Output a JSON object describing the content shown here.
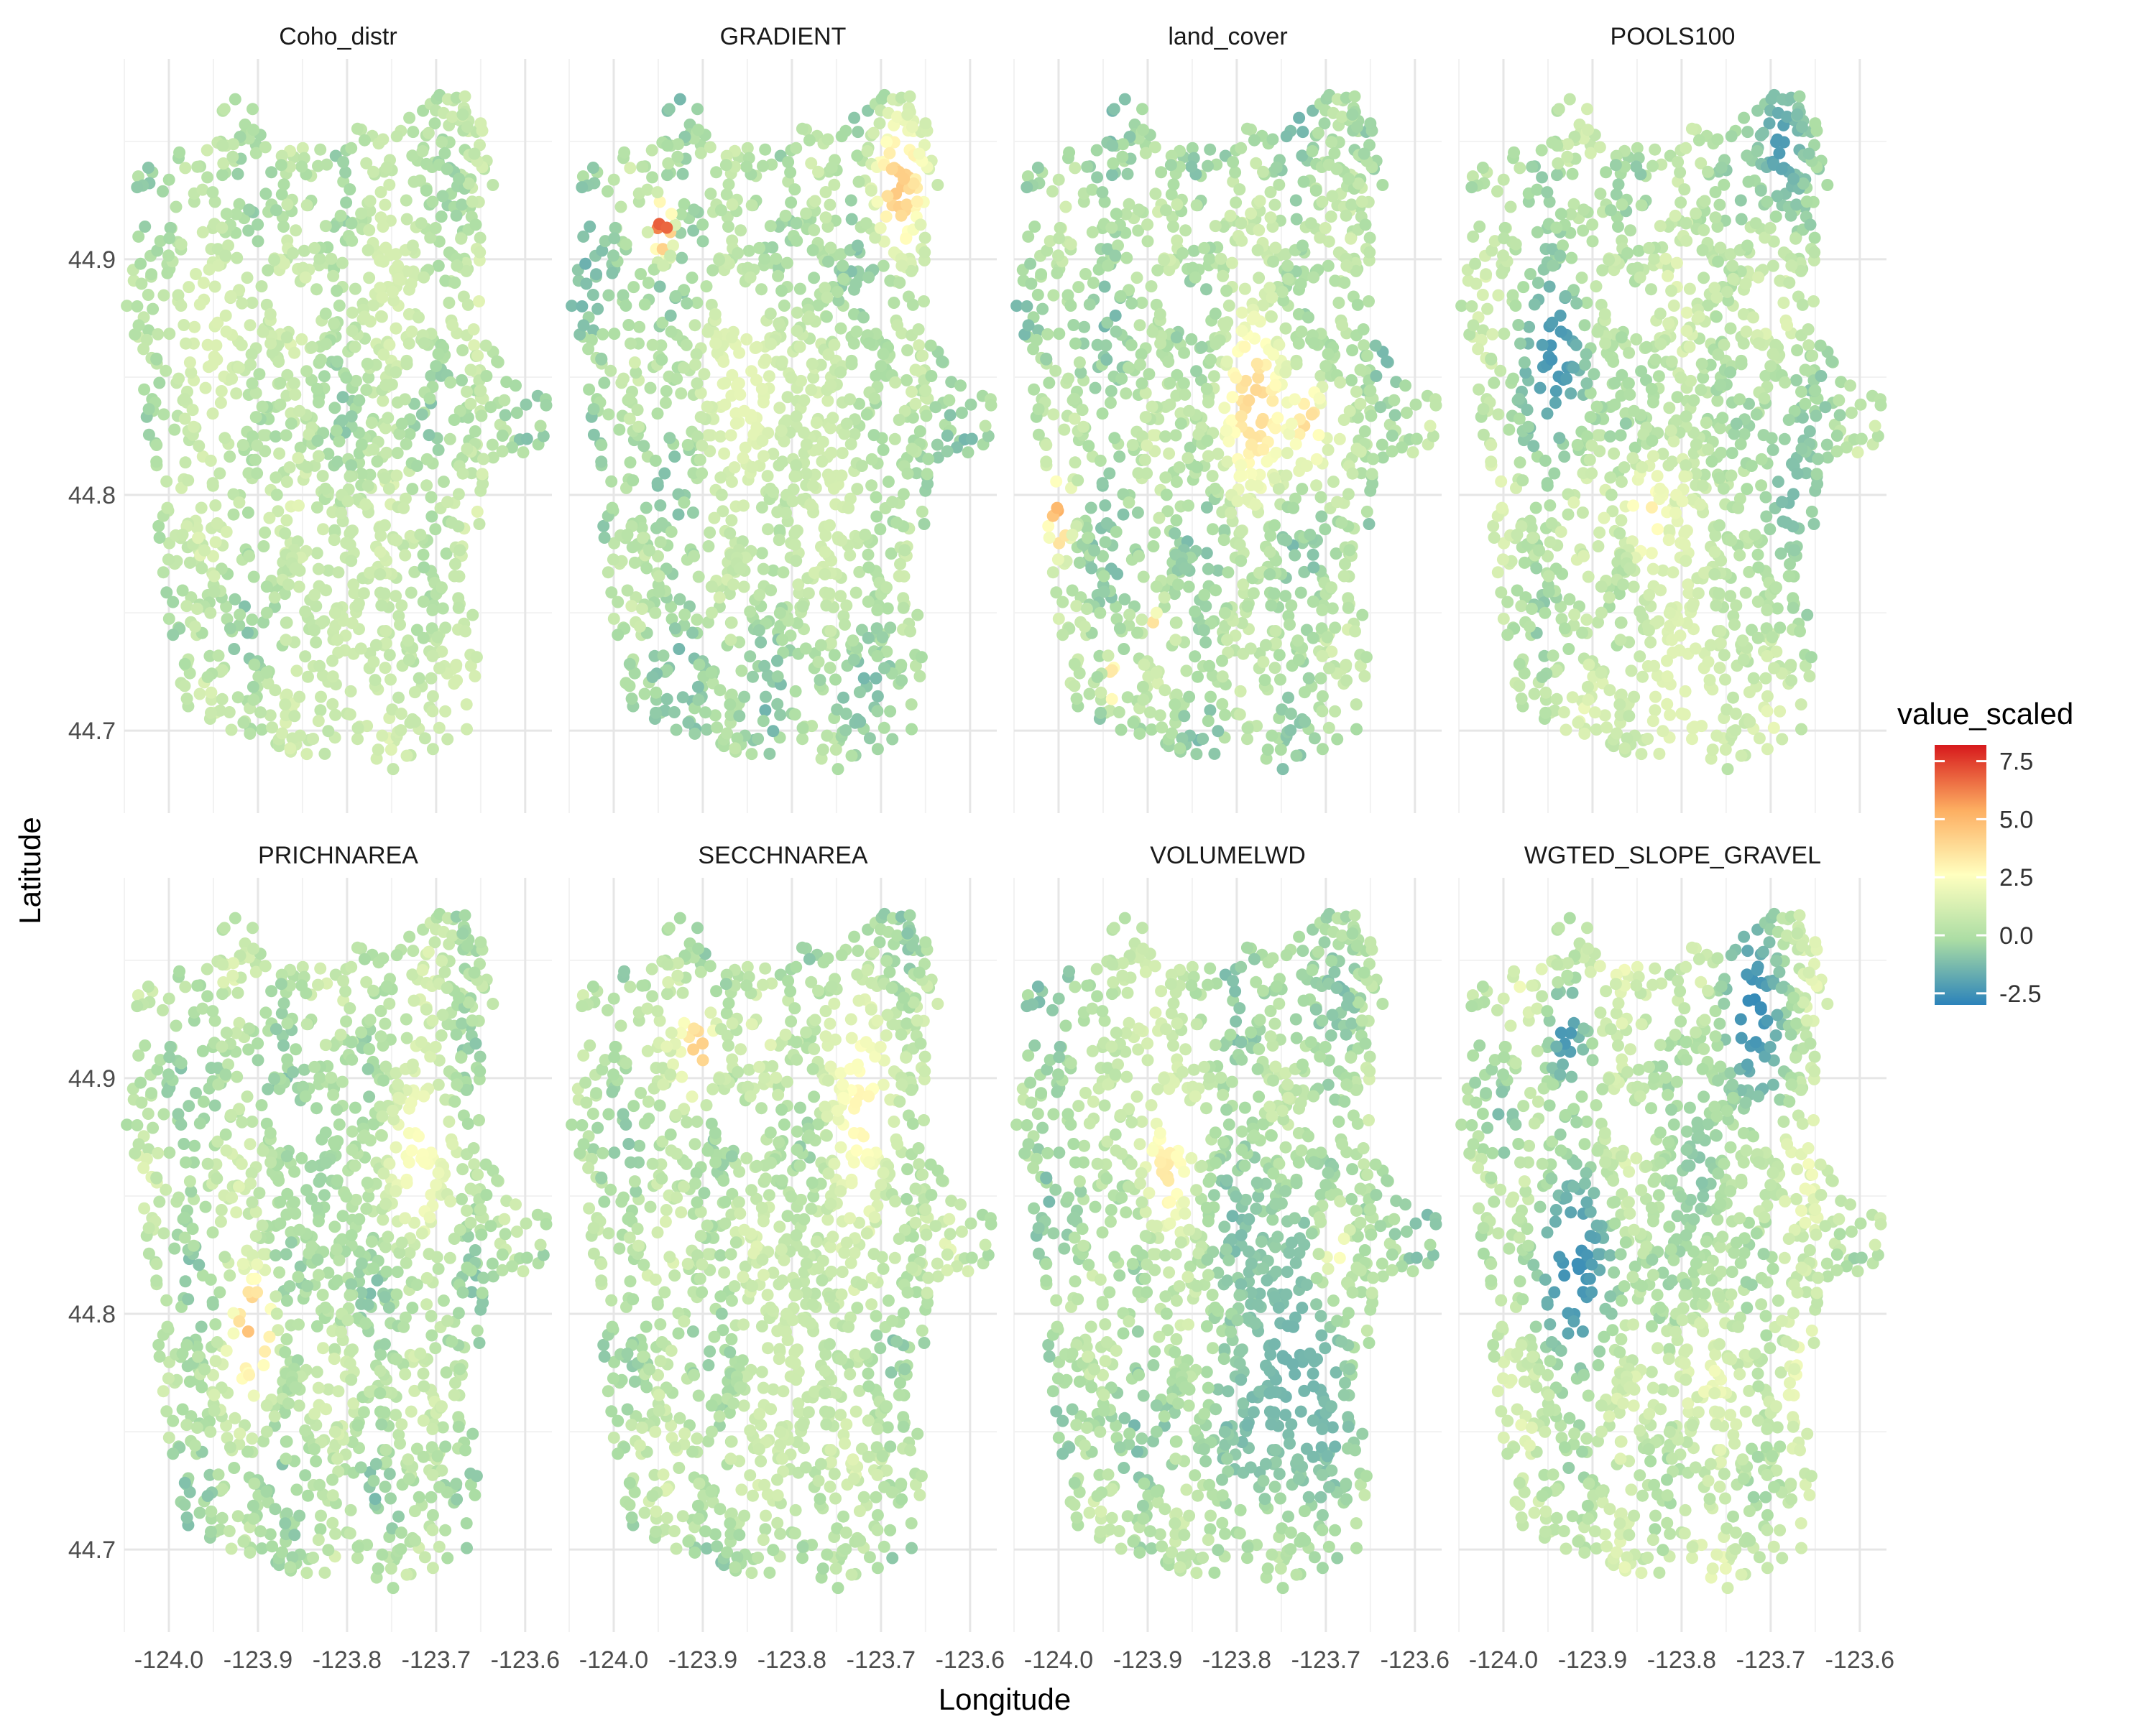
{
  "chart_data": {
    "type": "scatter",
    "layout": "faceted 2x4",
    "xlabel": "Longitude",
    "ylabel": "Latitude",
    "xlim": [
      -124.05,
      -123.57
    ],
    "ylim": [
      44.665,
      44.985
    ],
    "x_ticks": [
      -124.0,
      -123.9,
      -123.8,
      -123.7,
      -123.6
    ],
    "x_tick_labels": [
      "-124.0",
      "-123.9",
      "-123.8",
      "-123.7",
      "-123.6"
    ],
    "y_ticks": [
      44.7,
      44.8,
      44.9
    ],
    "y_tick_labels": [
      "44.7",
      "44.8",
      "44.9"
    ],
    "grid": true,
    "facets": [
      {
        "title": "Coho_distr",
        "base": 0.3,
        "hotspots": [
          {
            "x": -123.95,
            "y": 44.86,
            "v": 1.4,
            "r": 0.05
          },
          {
            "x": -123.75,
            "y": 44.9,
            "v": 1.2,
            "r": 0.04
          },
          {
            "x": -123.8,
            "y": 44.74,
            "v": 1.0,
            "r": 0.05
          },
          {
            "x": -123.68,
            "y": 44.72,
            "v": 1.2,
            "r": 0.04
          }
        ]
      },
      {
        "title": "GRADIENT",
        "base": -0.2,
        "hotspots": [
          {
            "x": -123.945,
            "y": 44.913,
            "v": 8.0,
            "r": 0.012
          },
          {
            "x": -123.68,
            "y": 44.93,
            "v": 4.5,
            "r": 0.03
          },
          {
            "x": -123.85,
            "y": 44.84,
            "v": 1.8,
            "r": 0.06
          },
          {
            "x": -123.75,
            "y": 44.8,
            "v": 1.2,
            "r": 0.05
          }
        ]
      },
      {
        "title": "land_cover",
        "base": 0.0,
        "hotspots": [
          {
            "x": -124.0,
            "y": 44.79,
            "v": 5.5,
            "r": 0.015
          },
          {
            "x": -123.89,
            "y": 44.74,
            "v": 7.0,
            "r": 0.008
          },
          {
            "x": -123.78,
            "y": 44.84,
            "v": 4.0,
            "r": 0.04
          },
          {
            "x": -123.94,
            "y": 44.72,
            "v": 4.5,
            "r": 0.01
          },
          {
            "x": -123.72,
            "y": 44.83,
            "v": 4.0,
            "r": 0.02
          }
        ]
      },
      {
        "title": "POOLS100",
        "base": 0.5,
        "hotspots": [
          {
            "x": -123.94,
            "y": 44.86,
            "v": -2.5,
            "r": 0.04
          },
          {
            "x": -123.69,
            "y": 44.95,
            "v": -2.3,
            "r": 0.03
          },
          {
            "x": -123.84,
            "y": 44.79,
            "v": 4.0,
            "r": 0.02
          },
          {
            "x": -123.68,
            "y": 44.8,
            "v": -1.3,
            "r": 0.04
          },
          {
            "x": -123.8,
            "y": 44.72,
            "v": 1.6,
            "r": 0.06
          }
        ]
      },
      {
        "title": "PRICHNAREA",
        "base": 0.2,
        "hotspots": [
          {
            "x": -123.905,
            "y": 44.795,
            "v": 5.0,
            "r": 0.025
          },
          {
            "x": -123.72,
            "y": 44.87,
            "v": 2.5,
            "r": 0.04
          },
          {
            "x": -123.83,
            "y": 44.86,
            "v": -0.5,
            "r": 0.04
          }
        ]
      },
      {
        "title": "SECCHNAREA",
        "base": 0.3,
        "hotspots": [
          {
            "x": -123.905,
            "y": 44.912,
            "v": 4.5,
            "r": 0.02
          },
          {
            "x": -123.72,
            "y": 44.885,
            "v": 3.0,
            "r": 0.04
          },
          {
            "x": -123.8,
            "y": 44.78,
            "v": 1.0,
            "r": 0.05
          }
        ]
      },
      {
        "title": "VOLUMELWD",
        "base": 0.0,
        "hotspots": [
          {
            "x": -123.88,
            "y": 44.86,
            "v": 3.5,
            "r": 0.03
          },
          {
            "x": -123.74,
            "y": 44.78,
            "v": -1.5,
            "r": 0.07
          },
          {
            "x": -123.69,
            "y": 44.83,
            "v": 3.0,
            "r": 0.02
          },
          {
            "x": -123.9,
            "y": 44.93,
            "v": 1.5,
            "r": 0.04
          }
        ]
      },
      {
        "title": "WGTED_SLOPE_GRAVEL",
        "base": 0.8,
        "hotspots": [
          {
            "x": -123.92,
            "y": 44.82,
            "v": -2.6,
            "r": 0.05
          },
          {
            "x": -123.72,
            "y": 44.93,
            "v": -2.8,
            "r": 0.04
          },
          {
            "x": -123.93,
            "y": 44.92,
            "v": -2.5,
            "r": 0.02
          },
          {
            "x": -123.78,
            "y": 44.86,
            "v": -1.0,
            "r": 0.04
          },
          {
            "x": -124.0,
            "y": 44.88,
            "v": -1.5,
            "r": 0.02
          }
        ]
      }
    ],
    "color_scale": {
      "title": "value_scaled",
      "ticks": [
        7.5,
        5.0,
        2.5,
        0.0,
        -2.5
      ],
      "tick_labels": [
        "7.5",
        "5.0",
        "2.5",
        "0.0",
        "-2.5"
      ],
      "min": -3.0,
      "max": 8.2,
      "palette": "Spectral",
      "colors": [
        "#2b83ba",
        "#abdda4",
        "#ffffbf",
        "#fdae61",
        "#d7191c"
      ]
    }
  }
}
